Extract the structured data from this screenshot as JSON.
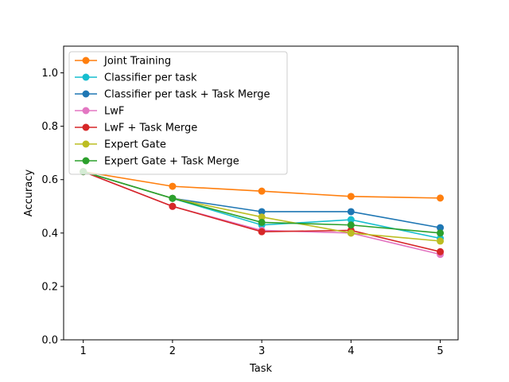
{
  "chart_data": {
    "type": "line",
    "title": "",
    "xlabel": "Task",
    "ylabel": "Accuracy",
    "x": [
      1,
      2,
      3,
      4,
      5
    ],
    "xlim": [
      0.78,
      5.2
    ],
    "ylim": [
      0,
      1.1
    ],
    "xticks": [
      "1",
      "2",
      "3",
      "4",
      "5"
    ],
    "yticks": [
      "0.0",
      "0.2",
      "0.4",
      "0.6",
      "0.8",
      "1.0"
    ],
    "grid": false,
    "legend_position": "top-left",
    "series": [
      {
        "name": "Joint Training",
        "color": "#ff7f0e",
        "values": [
          0.63,
          0.575,
          0.557,
          0.537,
          0.531
        ]
      },
      {
        "name": "Classifier per task",
        "color": "#17becf",
        "values": [
          0.63,
          0.53,
          0.43,
          0.45,
          0.38
        ]
      },
      {
        "name": "Classifier per task + Task Merge",
        "color": "#1f77b4",
        "values": [
          0.63,
          0.53,
          0.48,
          0.48,
          0.42
        ]
      },
      {
        "name": "LwF",
        "color": "#e377c2",
        "values": [
          0.63,
          0.5,
          0.41,
          0.4,
          0.32
        ]
      },
      {
        "name": "LwF + Task Merge",
        "color": "#d62728",
        "values": [
          0.63,
          0.5,
          0.405,
          0.41,
          0.33
        ]
      },
      {
        "name": "Expert Gate",
        "color": "#bcbd22",
        "values": [
          0.63,
          0.53,
          0.46,
          0.4,
          0.37
        ]
      },
      {
        "name": "Expert Gate + Task Merge",
        "color": "#2ca02c",
        "values": [
          0.63,
          0.53,
          0.44,
          0.43,
          0.4
        ]
      }
    ]
  }
}
